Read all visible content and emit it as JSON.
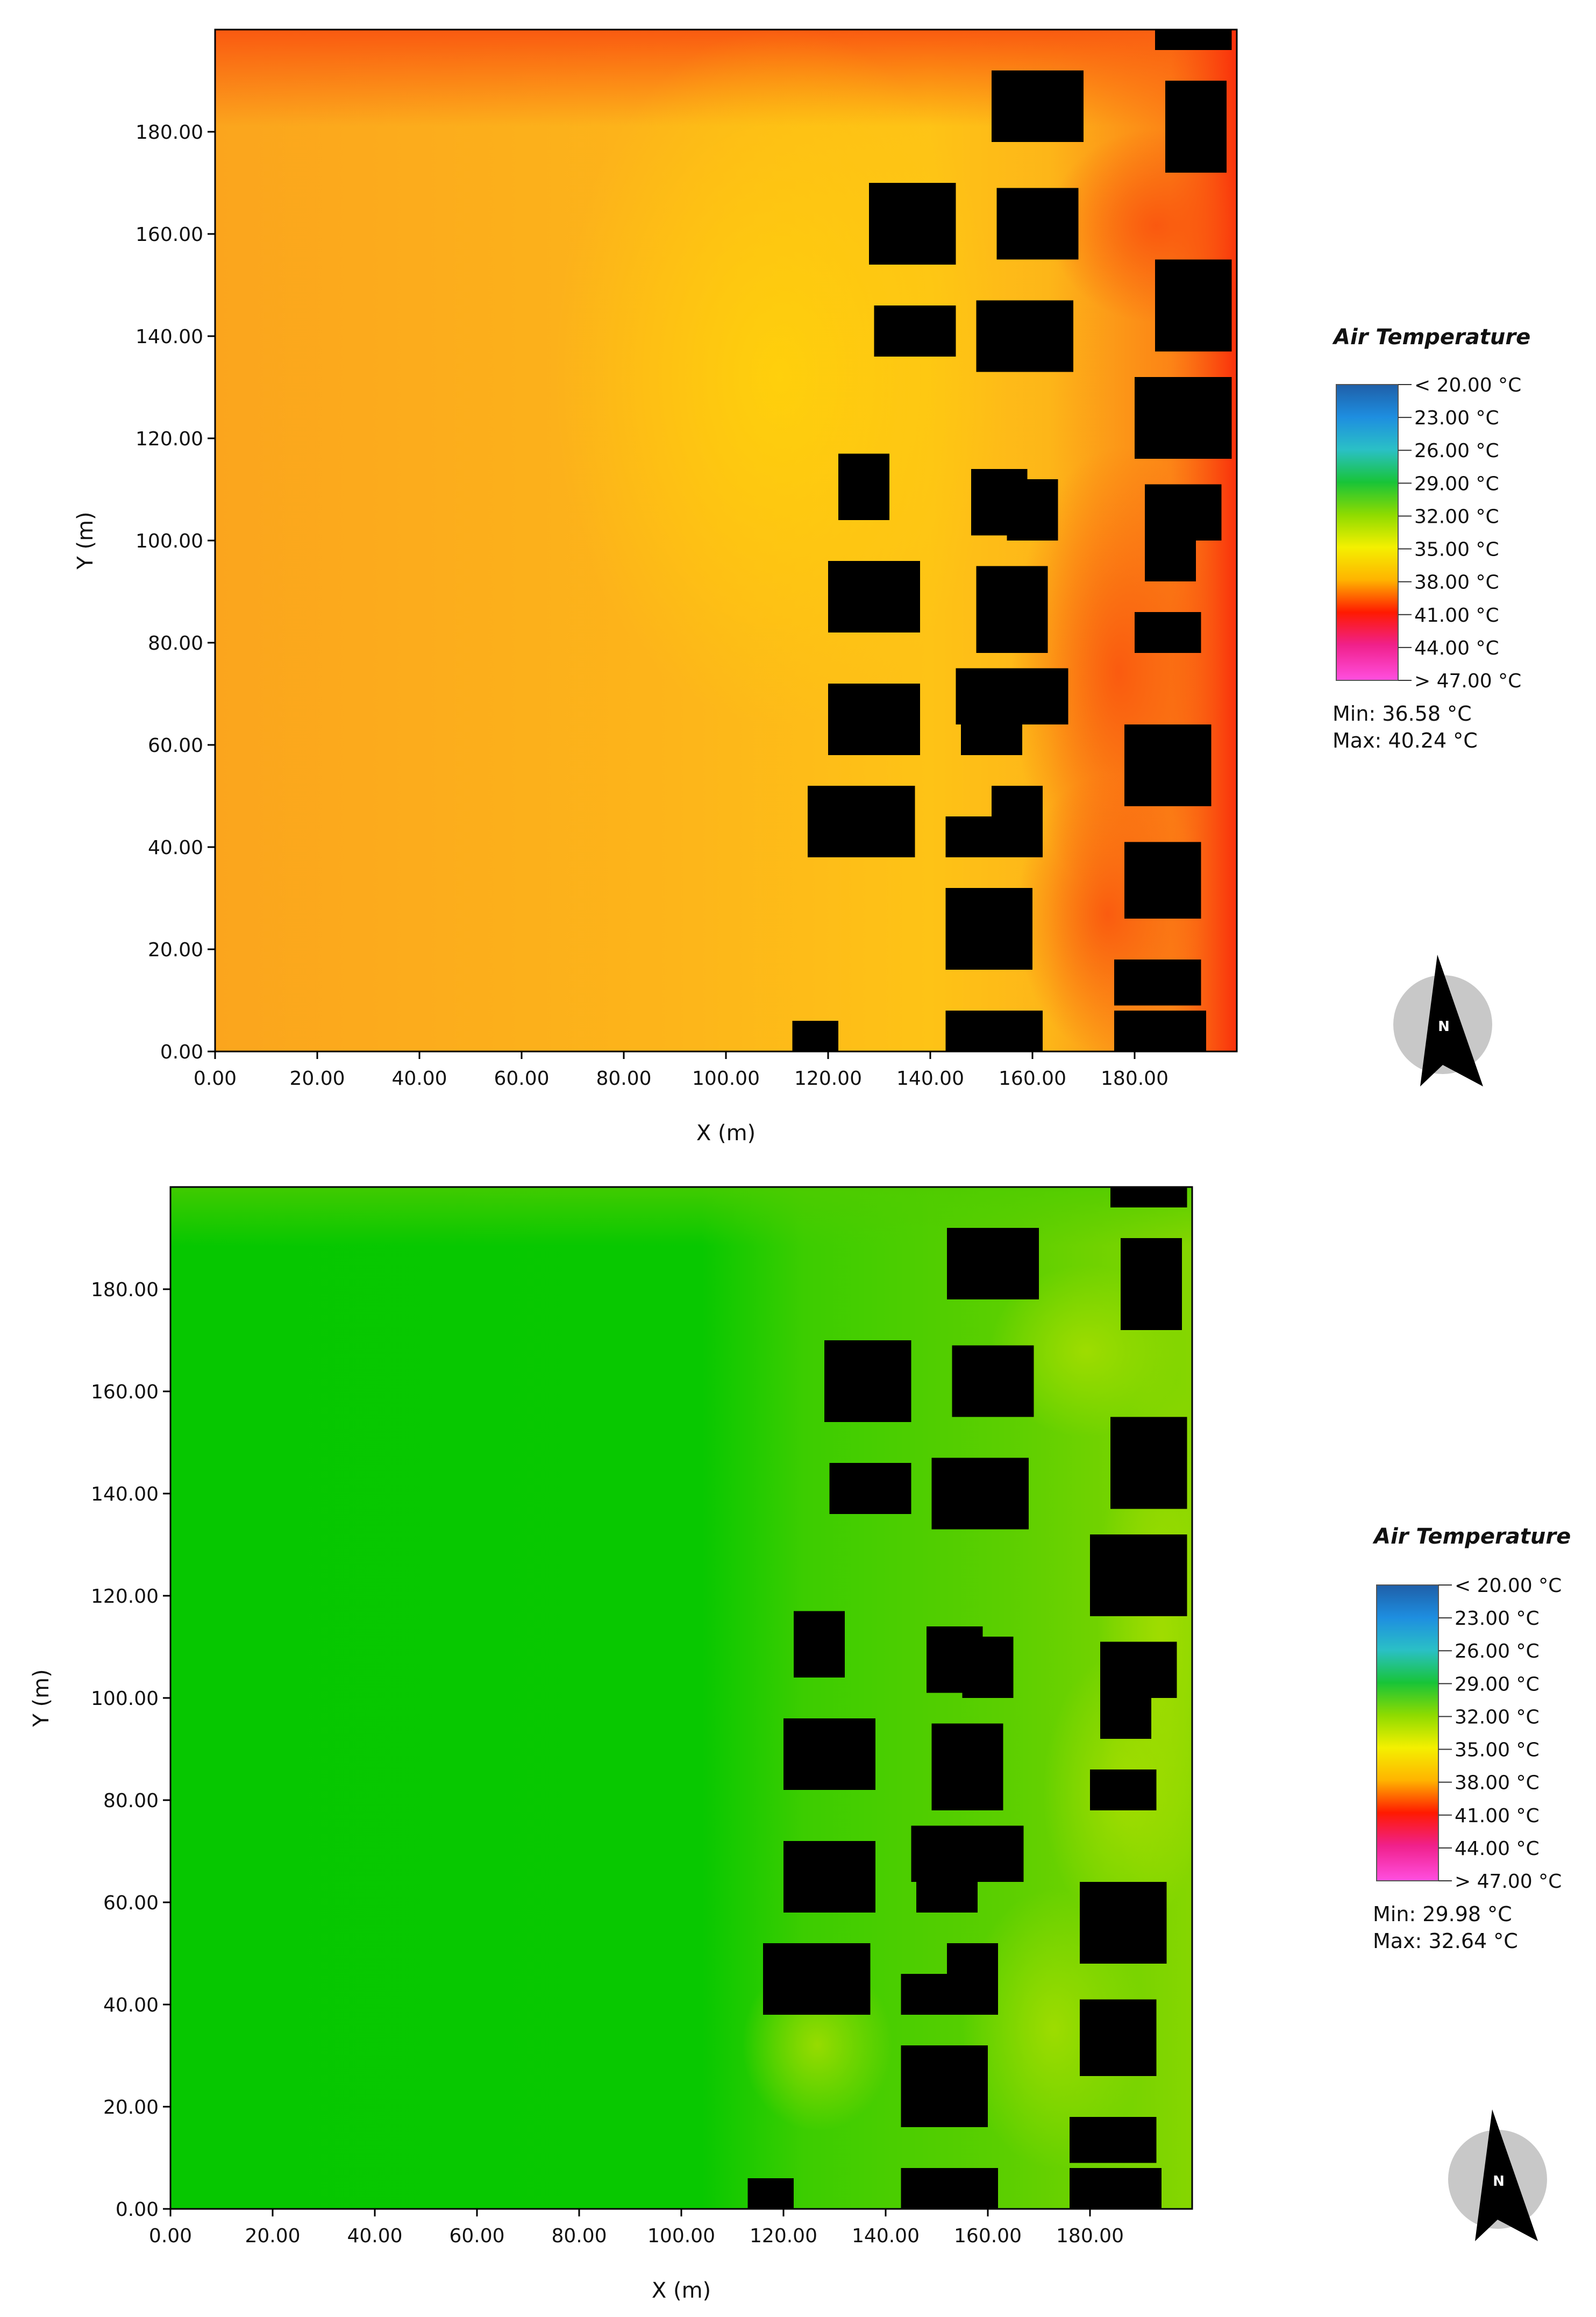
{
  "chart_data": [
    {
      "type": "heatmap",
      "xlabel": "X (m)",
      "ylabel": "Y (m)",
      "xlim": [
        0,
        200
      ],
      "ylim": [
        0,
        200
      ],
      "x_ticks": [
        "0.00",
        "20.00",
        "40.00",
        "60.00",
        "80.00",
        "100.00",
        "120.00",
        "140.00",
        "160.00",
        "180.00"
      ],
      "y_ticks": [
        "0.00",
        "20.00",
        "40.00",
        "60.00",
        "80.00",
        "100.00",
        "120.00",
        "140.00",
        "160.00",
        "180.00"
      ],
      "legend": {
        "title": "Air Temperature",
        "labels": [
          "< 20.00 °C",
          "23.00  °C",
          "26.00  °C",
          "29.00  °C",
          "32.00  °C",
          "35.00  °C",
          "38.00  °C",
          "41.00  °C",
          "44.00  °C",
          "> 47.00 °C"
        ],
        "min": "Min: 36.58 °C",
        "max": "Max: 40.24 °C"
      },
      "field_description": "Air temperature mostly ~38-39 °C (orange/yellow) over the open area, hottest (~40 °C, red) near the top edge and along the right edge between buildings, coolest yellow zone around x 110-130, y 100-160.",
      "field_colors": {
        "base": "#fdb01a",
        "cool": "#fecd08",
        "hot": "#fb4a0c",
        "building": "#000000"
      }
    },
    {
      "type": "heatmap",
      "xlabel": "X (m)",
      "ylabel": "Y (m)",
      "xlim": [
        0,
        200
      ],
      "ylim": [
        0,
        200
      ],
      "x_ticks": [
        "0.00",
        "20.00",
        "40.00",
        "60.00",
        "80.00",
        "100.00",
        "120.00",
        "140.00",
        "160.00",
        "180.00"
      ],
      "y_ticks": [
        "0.00",
        "20.00",
        "40.00",
        "60.00",
        "80.00",
        "100.00",
        "120.00",
        "140.00",
        "160.00",
        "180.00"
      ],
      "legend": {
        "title": "Air Temperature",
        "labels": [
          "< 20.00 °C",
          "23.00  °C",
          "26.00  °C",
          "29.00  °C",
          "32.00  °C",
          "35.00  °C",
          "38.00  °C",
          "41.00  °C",
          "44.00  °C",
          "> 47.00 °C"
        ],
        "min": "Min: 29.98 °C",
        "max": "Max: 32.64 °C"
      },
      "field_description": "Air temperature mostly ~30 °C (green) across the open area, warming to ~31-32 °C (yellow-green) in the built-up zone on the right.",
      "field_colors": {
        "base": "#06c700",
        "warm": "#7fd400",
        "hot": "#a6de00",
        "building": "#000000"
      }
    }
  ],
  "buildings": [
    {
      "x": 113,
      "y": 0,
      "w": 9,
      "h": 6
    },
    {
      "x": 143,
      "y": 0,
      "w": 19,
      "h": 8
    },
    {
      "x": 176,
      "y": 0,
      "w": 18,
      "h": 8
    },
    {
      "x": 176,
      "y": 9,
      "w": 17,
      "h": 9
    },
    {
      "x": 143,
      "y": 16,
      "w": 17,
      "h": 16
    },
    {
      "x": 178,
      "y": 26,
      "w": 15,
      "h": 15
    },
    {
      "x": 116,
      "y": 38,
      "w": 21,
      "h": 14
    },
    {
      "x": 143,
      "y": 38,
      "w": 19,
      "h": 8
    },
    {
      "x": 152,
      "y": 46,
      "w": 10,
      "h": 6
    },
    {
      "x": 178,
      "y": 48,
      "w": 17,
      "h": 16
    },
    {
      "x": 120,
      "y": 58,
      "w": 18,
      "h": 14
    },
    {
      "x": 146,
      "y": 58,
      "w": 12,
      "h": 6
    },
    {
      "x": 145,
      "y": 64,
      "w": 22,
      "h": 11
    },
    {
      "x": 180,
      "y": 78,
      "w": 13,
      "h": 8
    },
    {
      "x": 120,
      "y": 82,
      "w": 18,
      "h": 14
    },
    {
      "x": 149,
      "y": 78,
      "w": 14,
      "h": 17
    },
    {
      "x": 182,
      "y": 92,
      "w": 10,
      "h": 8
    },
    {
      "x": 182,
      "y": 100,
      "w": 15,
      "h": 11
    },
    {
      "x": 122,
      "y": 104,
      "w": 10,
      "h": 13
    },
    {
      "x": 148,
      "y": 101,
      "w": 11,
      "h": 13
    },
    {
      "x": 155,
      "y": 100,
      "w": 10,
      "h": 12
    },
    {
      "x": 180,
      "y": 116,
      "w": 19,
      "h": 16
    },
    {
      "x": 129,
      "y": 136,
      "w": 16,
      "h": 10
    },
    {
      "x": 149,
      "y": 133,
      "w": 19,
      "h": 14
    },
    {
      "x": 184,
      "y": 137,
      "w": 15,
      "h": 18
    },
    {
      "x": 128,
      "y": 154,
      "w": 17,
      "h": 16
    },
    {
      "x": 153,
      "y": 155,
      "w": 16,
      "h": 14
    },
    {
      "x": 152,
      "y": 178,
      "w": 18,
      "h": 14
    },
    {
      "x": 186,
      "y": 172,
      "w": 12,
      "h": 18
    },
    {
      "x": 184,
      "y": 196,
      "w": 15,
      "h": 4
    }
  ]
}
